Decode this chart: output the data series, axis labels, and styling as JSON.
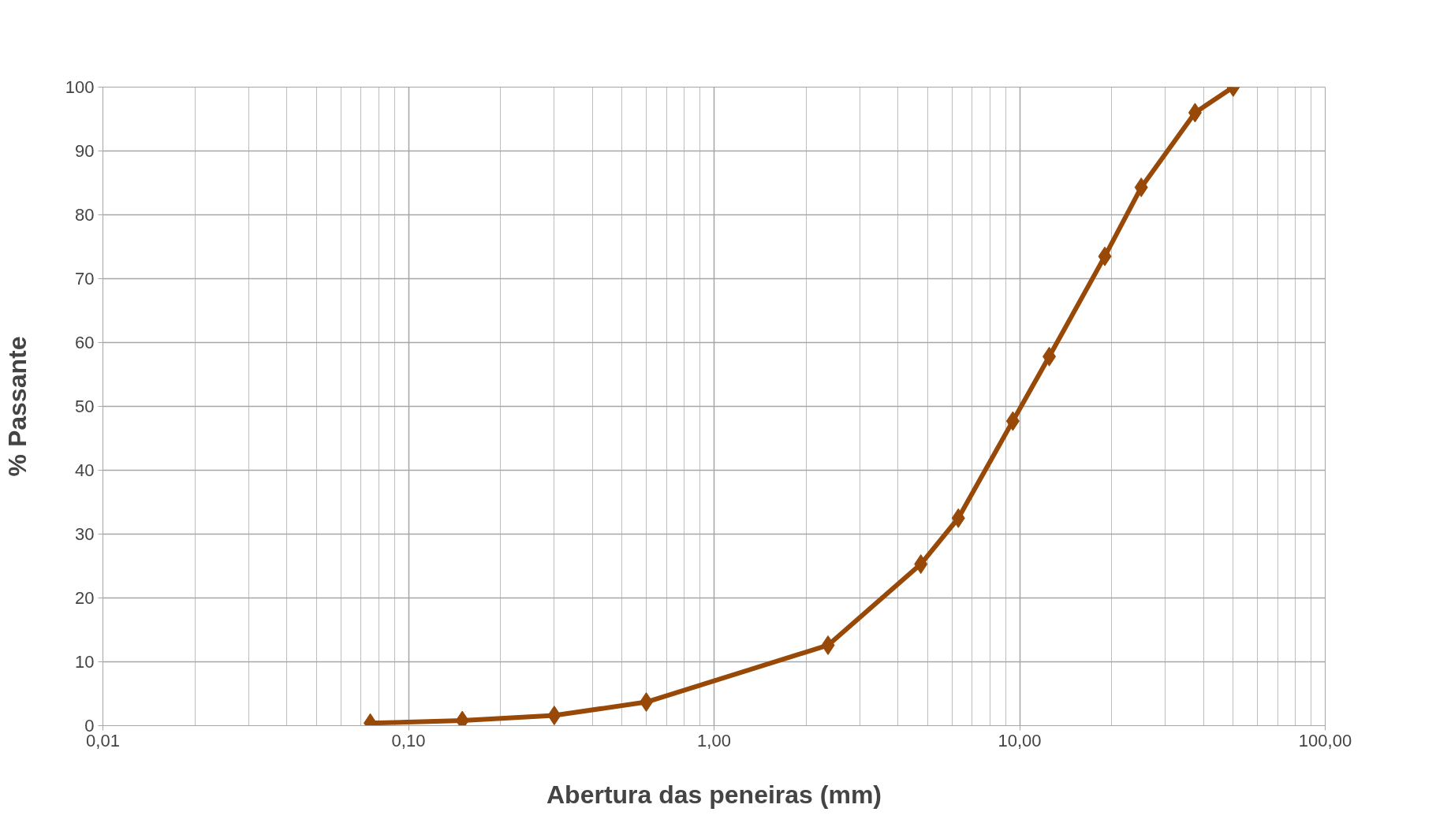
{
  "chart_data": {
    "type": "line",
    "xlabel": "Abertura das peneiras (mm)",
    "ylabel": "% Passante",
    "x": [
      0.075,
      0.15,
      0.3,
      0.6,
      2.36,
      4.75,
      6.3,
      9.5,
      12.5,
      19,
      25,
      37.5,
      50
    ],
    "series": [
      {
        "color": "#984807",
        "values": [
          0.4,
          0.8,
          1.6,
          3.7,
          12.6,
          25.3,
          32.5,
          47.7,
          57.8,
          73.5,
          84.3,
          96,
          100
        ]
      }
    ],
    "log": "x",
    "xlim": [
      0.01,
      100
    ],
    "xticks": [
      {
        "value": 0.01,
        "label": "0,01"
      },
      {
        "value": 0.1,
        "label": "0,10"
      },
      {
        "value": 1,
        "label": "1,00"
      },
      {
        "value": 10,
        "label": "10,00"
      },
      {
        "value": 100,
        "label": "100,00"
      }
    ],
    "ylim": [
      0,
      100
    ],
    "yticks": [
      0,
      10,
      20,
      30,
      40,
      50,
      60,
      70,
      80,
      90,
      100
    ],
    "grid": true,
    "marker": "diamond",
    "line_style": "solid"
  }
}
